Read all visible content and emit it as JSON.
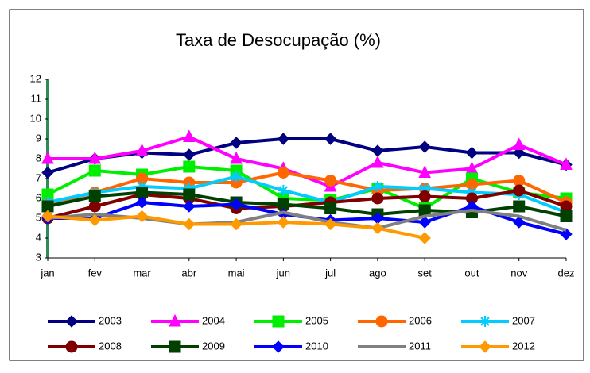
{
  "chart_data": {
    "type": "line",
    "title": "Taxa de Desocupação (%)",
    "categories": [
      "jan",
      "fev",
      "mar",
      "abr",
      "mai",
      "jun",
      "jul",
      "ago",
      "set",
      "out",
      "nov",
      "dez"
    ],
    "ylim": [
      3,
      12
    ],
    "yticks": [
      3,
      4,
      5,
      6,
      7,
      8,
      9,
      10,
      11,
      12
    ],
    "series": [
      {
        "name": "2003",
        "color": "#000080",
        "marker": "diamond",
        "values": [
          7.3,
          8.0,
          8.3,
          8.2,
          8.8,
          9.0,
          9.0,
          8.4,
          8.6,
          8.3,
          8.3,
          7.7
        ]
      },
      {
        "name": "2004",
        "color": "#ff00ff",
        "marker": "triangle",
        "values": [
          8.0,
          8.0,
          8.4,
          9.1,
          8.0,
          7.5,
          6.6,
          7.8,
          7.3,
          7.5,
          8.7,
          7.7
        ]
      },
      {
        "name": "2005",
        "color": "#00ee00",
        "marker": "square",
        "values": [
          6.2,
          7.4,
          7.2,
          7.6,
          7.4,
          6.0,
          5.9,
          6.5,
          5.5,
          7.0,
          6.3,
          6.0
        ]
      },
      {
        "name": "2006",
        "color": "#ff6600",
        "marker": "circle",
        "values": [
          5.7,
          6.3,
          7.0,
          6.8,
          6.8,
          7.3,
          6.9,
          6.4,
          6.5,
          6.7,
          6.9,
          5.8
        ]
      },
      {
        "name": "2007",
        "color": "#00ccff",
        "marker": "star",
        "values": [
          5.8,
          6.3,
          6.6,
          6.5,
          7.1,
          6.4,
          5.8,
          6.6,
          6.5,
          6.3,
          6.2,
          5.3
        ]
      },
      {
        "name": "2008",
        "color": "#800000",
        "marker": "circle",
        "values": [
          5.0,
          5.6,
          6.2,
          6.0,
          5.5,
          5.6,
          5.8,
          6.0,
          6.1,
          6.0,
          6.4,
          5.6
        ]
      },
      {
        "name": "2009",
        "color": "#004000",
        "marker": "square",
        "values": [
          5.6,
          6.1,
          6.3,
          6.2,
          5.8,
          5.7,
          5.5,
          5.2,
          5.4,
          5.3,
          5.6,
          5.1
        ]
      },
      {
        "name": "2010",
        "color": "#0000ff",
        "marker": "diamond",
        "values": [
          5.0,
          5.0,
          5.8,
          5.6,
          5.7,
          5.2,
          4.9,
          5.0,
          4.8,
          5.6,
          4.8,
          4.2
        ]
      },
      {
        "name": "2011",
        "color": "#808080",
        "marker": "none",
        "values": [
          5.0,
          5.2,
          5.0,
          4.7,
          4.8,
          5.3,
          4.8,
          4.5,
          5.1,
          5.4,
          5.1,
          4.4
        ]
      },
      {
        "name": "2012",
        "color": "#ff9900",
        "marker": "diamond",
        "values": [
          5.1,
          4.9,
          5.1,
          4.7,
          4.7,
          4.8,
          4.7,
          4.5,
          4.0,
          null,
          null,
          null
        ]
      }
    ]
  }
}
